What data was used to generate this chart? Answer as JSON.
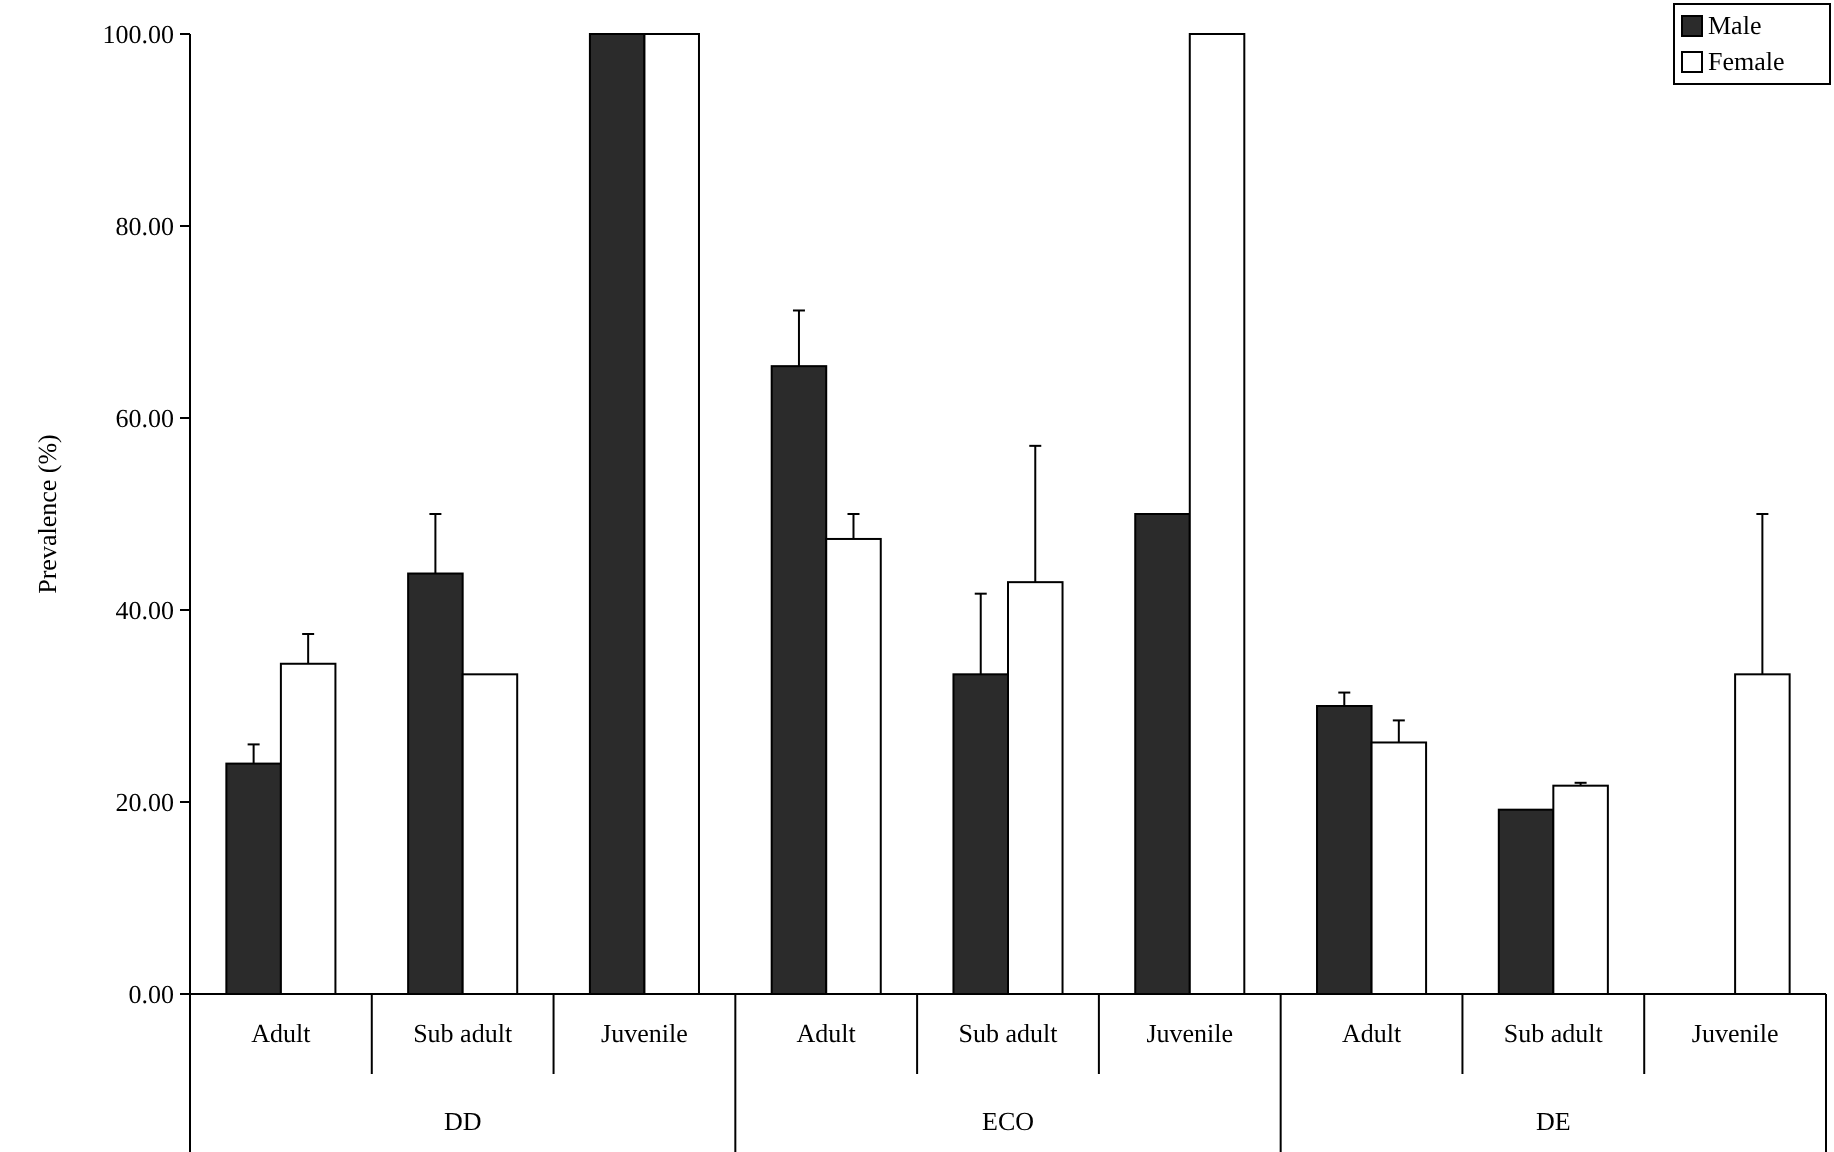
{
  "chart_data": {
    "type": "bar",
    "ylabel": "Prevalence (%)",
    "categories": [
      "Adult",
      "Sub adult",
      "Juvenile",
      "Adult",
      "Sub adult",
      "Juvenile",
      "Adult",
      "Sub adult",
      "Juvenile"
    ],
    "annotations": [
      "DD",
      "ECO",
      "DE"
    ],
    "series": [
      {
        "name": "Male",
        "color": "#2b2b2b",
        "values": [
          24,
          43.8,
          100,
          65.4,
          33.3,
          50,
          30,
          19.2,
          0
        ],
        "errors": [
          [
            24,
            26
          ],
          [
            43.8,
            50
          ],
          null,
          [
            65.4,
            71.2
          ],
          [
            33.3,
            41.7
          ],
          null,
          [
            30,
            31.4
          ],
          null,
          null
        ]
      },
      {
        "name": "Female",
        "color": "#ffffff",
        "values": [
          34.4,
          33.3,
          100,
          47.4,
          42.9,
          100,
          26.2,
          21.7,
          33.3
        ],
        "errors": [
          [
            34.4,
            37.5
          ],
          null,
          null,
          [
            47.4,
            50
          ],
          [
            42.9,
            57.1
          ],
          null,
          [
            26.2,
            28.5
          ],
          [
            21.7,
            22
          ],
          [
            33.3,
            50
          ]
        ]
      }
    ],
    "ylim": [
      0,
      100
    ],
    "yticks": [
      {
        "value": 0,
        "label": "0.00"
      },
      {
        "value": 20,
        "label": "20.00"
      },
      {
        "value": 40,
        "label": "40.00"
      },
      {
        "value": 60,
        "label": "60.00"
      },
      {
        "value": 80,
        "label": "80.00"
      },
      {
        "value": 100,
        "label": "100.00"
      }
    ],
    "legend": "top right"
  }
}
